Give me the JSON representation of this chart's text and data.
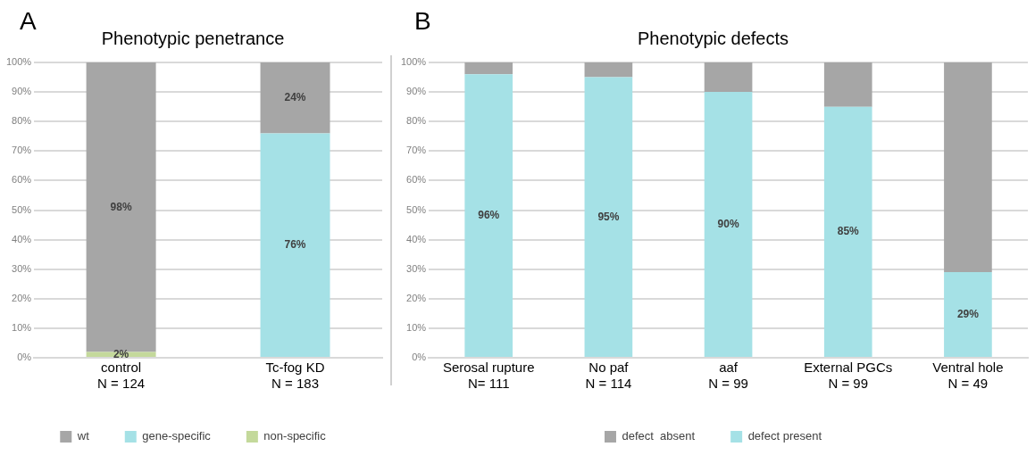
{
  "chart_data": [
    {
      "type": "bar",
      "title": "Phenotypic penetrance",
      "annotations": [
        "A"
      ],
      "stacked": true,
      "legend": "bottom",
      "grid": "y",
      "categories": [
        "control\nN = 124",
        "Tc-fog KD\nN = 183"
      ],
      "series": [
        {
          "name": "non-specific",
          "color": "#c4d99b",
          "values": [
            2,
            null
          ],
          "value_labels": [
            "2%",
            null
          ]
        },
        {
          "name": "gene-specific",
          "color": "#a5e1e6",
          "values": [
            null,
            76
          ],
          "value_labels": [
            null,
            "76%"
          ]
        },
        {
          "name": "wt",
          "color": "#a6a6a6",
          "values": [
            98,
            24
          ],
          "value_labels": [
            "98%",
            "24%"
          ]
        }
      ],
      "ylim": [
        0,
        100
      ],
      "yticks": [
        {
          "value": 0,
          "label": "0%"
        },
        {
          "value": 10,
          "label": "10%"
        },
        {
          "value": 20,
          "label": "20%"
        },
        {
          "value": 30,
          "label": "30%"
        },
        {
          "value": 40,
          "label": "40%"
        },
        {
          "value": 50,
          "label": "50%"
        },
        {
          "value": 60,
          "label": "60%"
        },
        {
          "value": 70,
          "label": "70%"
        },
        {
          "value": 80,
          "label": "80%"
        },
        {
          "value": 90,
          "label": "90%"
        },
        {
          "value": 100,
          "label": "100%"
        }
      ]
    },
    {
      "type": "bar",
      "title": "Phenotypic defects",
      "annotations": [
        "B"
      ],
      "stacked": true,
      "legend": "bottom",
      "grid": "y",
      "categories": [
        "Serosal rupture\nN= 111",
        "No paf\nN = 114",
        "aaf\nN = 99",
        "External PGCs\nN = 99",
        "Ventral hole\nN = 49"
      ],
      "series": [
        {
          "name": "defect present",
          "color": "#a5e1e6",
          "values": [
            96,
            95,
            90,
            85,
            29
          ],
          "value_labels": [
            "96%",
            "95%",
            "90%",
            "85%",
            "29%"
          ]
        },
        {
          "name": "defect  absent",
          "color": "#a6a6a6",
          "values": [
            4,
            5,
            10,
            15,
            71
          ]
        }
      ],
      "ylim": [
        0,
        100
      ],
      "yticks": [
        {
          "value": 0,
          "label": "0%"
        },
        {
          "value": 10,
          "label": "10%"
        },
        {
          "value": 20,
          "label": "20%"
        },
        {
          "value": 30,
          "label": "30%"
        },
        {
          "value": 40,
          "label": "40%"
        },
        {
          "value": 50,
          "label": "50%"
        },
        {
          "value": 60,
          "label": "60%"
        },
        {
          "value": 70,
          "label": "70%"
        },
        {
          "value": 80,
          "label": "80%"
        },
        {
          "value": 90,
          "label": "90%"
        },
        {
          "value": 100,
          "label": "100%"
        }
      ]
    }
  ]
}
